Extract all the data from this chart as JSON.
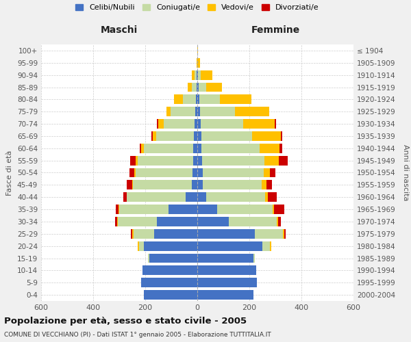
{
  "age_groups": [
    "0-4",
    "5-9",
    "10-14",
    "15-19",
    "20-24",
    "25-29",
    "30-34",
    "35-39",
    "40-44",
    "45-49",
    "50-54",
    "55-59",
    "60-64",
    "65-69",
    "70-74",
    "75-79",
    "80-84",
    "85-89",
    "90-94",
    "95-99",
    "100+"
  ],
  "birth_years": [
    "2000-2004",
    "1995-1999",
    "1990-1994",
    "1985-1989",
    "1980-1984",
    "1975-1979",
    "1970-1974",
    "1965-1969",
    "1960-1964",
    "1955-1959",
    "1950-1954",
    "1945-1949",
    "1940-1944",
    "1935-1939",
    "1930-1934",
    "1925-1929",
    "1920-1924",
    "1915-1919",
    "1910-1914",
    "1905-1909",
    "≤ 1904"
  ],
  "male_celibe": [
    205,
    215,
    210,
    185,
    205,
    165,
    155,
    110,
    45,
    22,
    18,
    15,
    15,
    12,
    10,
    8,
    5,
    3,
    2,
    0,
    0
  ],
  "male_coniugato": [
    0,
    0,
    0,
    5,
    20,
    80,
    150,
    190,
    225,
    225,
    220,
    215,
    190,
    145,
    120,
    95,
    50,
    18,
    8,
    1,
    0
  ],
  "male_vedovo": [
    0,
    0,
    0,
    0,
    5,
    5,
    2,
    2,
    2,
    3,
    5,
    8,
    10,
    15,
    20,
    15,
    35,
    15,
    10,
    1,
    0
  ],
  "male_divorziato": [
    0,
    0,
    0,
    0,
    0,
    5,
    8,
    12,
    12,
    22,
    18,
    20,
    5,
    5,
    5,
    0,
    0,
    0,
    0,
    0,
    0
  ],
  "female_celibe": [
    215,
    230,
    225,
    215,
    250,
    220,
    120,
    75,
    35,
    22,
    20,
    18,
    15,
    15,
    12,
    10,
    8,
    5,
    2,
    0,
    0
  ],
  "female_coniugato": [
    0,
    0,
    0,
    5,
    30,
    110,
    185,
    215,
    225,
    225,
    235,
    240,
    225,
    195,
    165,
    135,
    80,
    30,
    10,
    1,
    0
  ],
  "female_vedovo": [
    0,
    0,
    0,
    0,
    5,
    5,
    5,
    5,
    10,
    18,
    25,
    55,
    75,
    110,
    120,
    130,
    120,
    60,
    45,
    10,
    2
  ],
  "female_divorziato": [
    0,
    0,
    0,
    0,
    0,
    5,
    10,
    40,
    35,
    22,
    20,
    35,
    12,
    5,
    5,
    0,
    0,
    0,
    0,
    0,
    0
  ],
  "colors": {
    "celibe": "#4472c4",
    "coniugato": "#c5dba4",
    "vedovo": "#ffc000",
    "divorziato": "#cc0000"
  },
  "title": "Popolazione per età, sesso e stato civile - 2005",
  "subtitle": "COMUNE DI VECCHIANO (PI) - Dati ISTAT 1° gennaio 2005 - Elaborazione TUTTITALIA.IT",
  "xlabel_left": "Maschi",
  "xlabel_right": "Femmine",
  "ylabel_left": "Fasce di età",
  "ylabel_right": "Anni di nascita",
  "xlim": 600,
  "legend_labels": [
    "Celibi/Nubili",
    "Coniugati/e",
    "Vedovi/e",
    "Divorziati/e"
  ],
  "bg_color": "#f0f0f0",
  "plot_bg_color": "#ffffff"
}
